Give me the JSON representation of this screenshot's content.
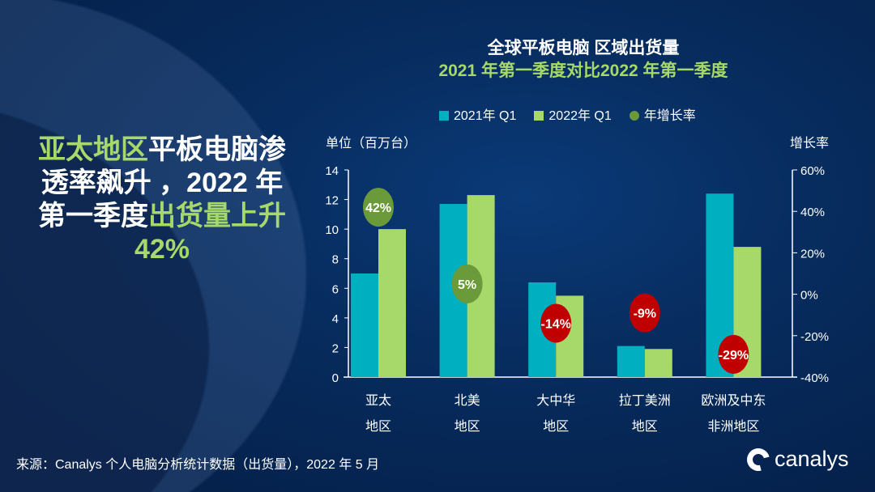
{
  "headline": {
    "p1": "亚太地区",
    "p2": "平板电脑渗透率飙升 ，2022 年第一季度",
    "p3": "出货量上升",
    "p4": "42%"
  },
  "chart_data": {
    "type": "bar",
    "title": "全球平板电脑 区域出货量",
    "subtitle": "2021 年第一季度对比2022 年第一季度",
    "ylabel": "单位（百万台）",
    "y2label": "增长率",
    "ylim": [
      0,
      14
    ],
    "yticks": [
      "0",
      "2",
      "4",
      "6",
      "8",
      "10",
      "12",
      "14"
    ],
    "y2lim": [
      -40,
      60
    ],
    "y2ticks": [
      "-40%",
      "-20%",
      "0%",
      "20%",
      "40%",
      "60%"
    ],
    "categories": [
      [
        "亚太",
        "地区"
      ],
      [
        "北美",
        "地区"
      ],
      [
        "大中华",
        "地区"
      ],
      [
        "拉丁美洲",
        "地区"
      ],
      [
        "欧洲及中东",
        "非洲地区"
      ]
    ],
    "series": [
      {
        "name": "2021年 Q1",
        "color": "#00b0c0",
        "values": [
          7.0,
          11.7,
          6.4,
          2.1,
          12.4
        ]
      },
      {
        "name": "2022年 Q1",
        "color": "#a6d86a",
        "values": [
          10.0,
          12.3,
          5.5,
          1.9,
          8.8
        ]
      }
    ],
    "growth": {
      "name": "年增长率",
      "values": [
        42,
        5,
        -14,
        -9,
        -29
      ],
      "labels": [
        "42%",
        "5%",
        "-14%",
        "-9%",
        "-29%"
      ],
      "positive_color": "#6a9a3a",
      "negative_color": "#c00000"
    },
    "legend": "top"
  },
  "source": "来源：Canalys 个人电脑分析统计数据（出货量），2022 年 5 月",
  "logo": "canalys"
}
